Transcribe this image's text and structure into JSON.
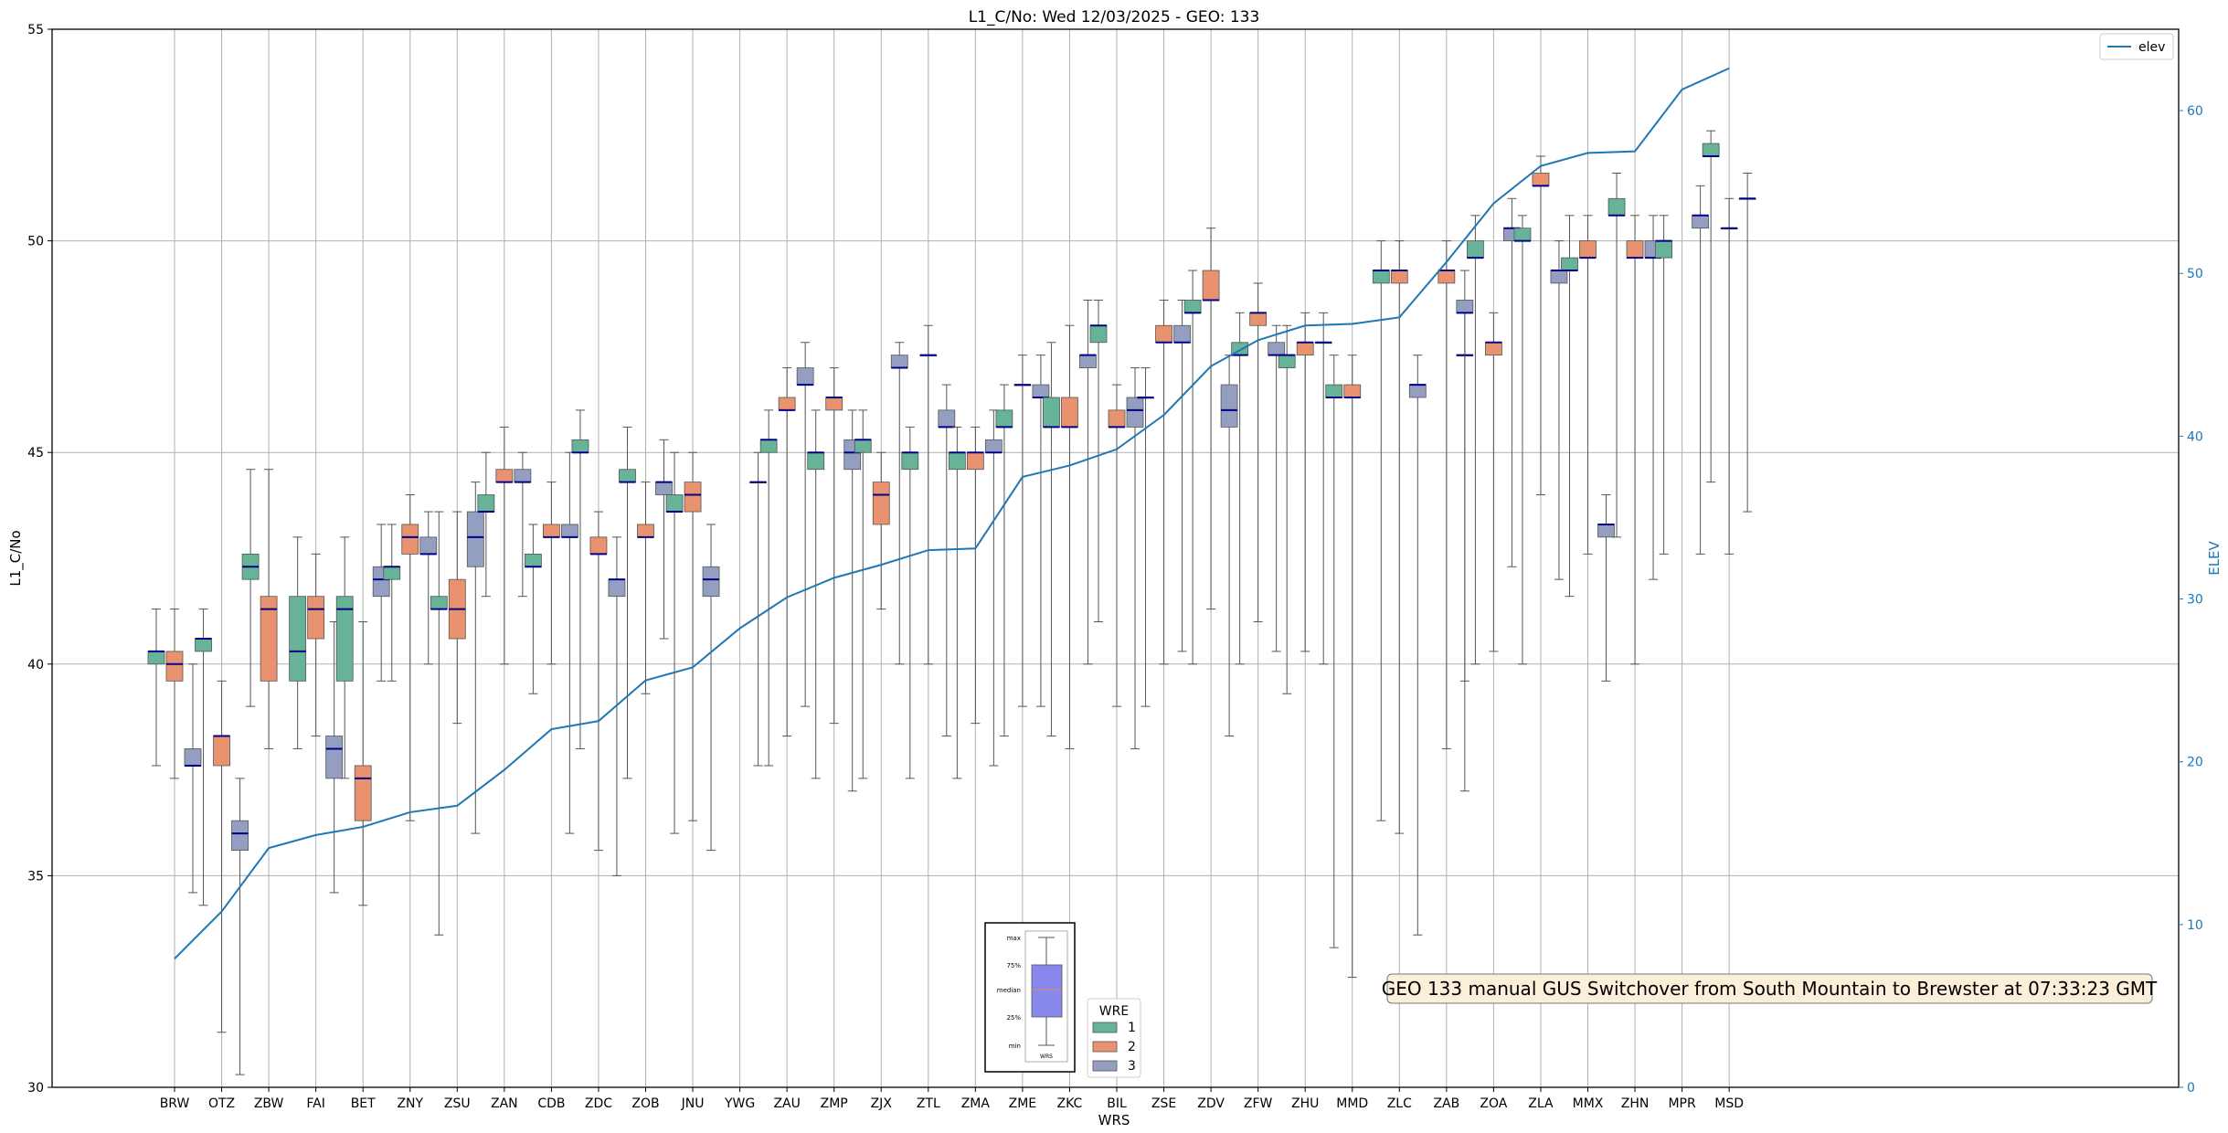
{
  "chart_data": {
    "type": "box",
    "title": "L1_C/No: Wed 12/03/2025 - GEO: 133",
    "xlabel": "WRS",
    "ylabel": "L1_C/No",
    "y2label": "ELEV",
    "ylim": [
      30,
      55
    ],
    "y2lim": [
      0,
      65
    ],
    "yticks": [
      30,
      35,
      40,
      45,
      50,
      55
    ],
    "y2ticks": [
      0,
      10,
      20,
      30,
      40,
      50,
      60
    ],
    "grid": true,
    "colors": {
      "1": "#66b397",
      "2": "#e9926f",
      "3": "#939ec0",
      "elev": "#1f77b4",
      "median": "#00008b"
    },
    "categories": [
      "BRW",
      "OTZ",
      "ZBW",
      "FAI",
      "BET",
      "ZNY",
      "ZSU",
      "ZAN",
      "CDB",
      "ZDC",
      "ZOB",
      "JNU",
      "YWG",
      "ZAU",
      "ZMP",
      "ZJX",
      "ZTL",
      "ZMA",
      "ZME",
      "ZKC",
      "BIL",
      "ZSE",
      "ZDV",
      "ZFW",
      "ZHU",
      "MMD",
      "ZLC",
      "ZAB",
      "ZOA",
      "ZLA",
      "MMX",
      "ZHN",
      "MPR",
      "MSD"
    ],
    "elev": [
      7.9,
      10.8,
      14.7,
      15.5,
      16.0,
      16.9,
      17.3,
      19.5,
      22.0,
      22.5,
      25.0,
      25.8,
      28.2,
      30.1,
      31.3,
      32.1,
      33.0,
      33.1,
      37.5,
      38.2,
      39.2,
      41.3,
      44.3,
      45.9,
      46.8,
      46.9,
      47.3,
      50.7,
      54.3,
      56.6,
      57.4,
      57.5,
      61.3,
      62.6
    ],
    "boxes": [
      {
        "cat": 0,
        "wre": "1",
        "min": 37.6,
        "q1": 40.0,
        "med": 40.3,
        "q3": 40.3,
        "max": 41.3
      },
      {
        "cat": 0,
        "wre": "2",
        "min": 37.3,
        "q1": 39.6,
        "med": 40.0,
        "q3": 40.3,
        "max": 41.3
      },
      {
        "cat": 0,
        "wre": "3",
        "min": 34.6,
        "q1": 37.6,
        "med": 37.6,
        "q3": 38.0,
        "max": 40.0
      },
      {
        "cat": 1,
        "wre": "1",
        "min": 34.3,
        "q1": 40.3,
        "med": 40.6,
        "q3": 40.6,
        "max": 41.3
      },
      {
        "cat": 1,
        "wre": "2",
        "min": 31.3,
        "q1": 37.6,
        "med": 38.3,
        "q3": 38.3,
        "max": 39.6
      },
      {
        "cat": 1,
        "wre": "3",
        "min": 30.3,
        "q1": 35.6,
        "med": 36.0,
        "q3": 36.3,
        "max": 37.3
      },
      {
        "cat": 2,
        "wre": "1",
        "min": 39.0,
        "q1": 42.0,
        "med": 42.3,
        "q3": 42.6,
        "max": 44.6
      },
      {
        "cat": 2,
        "wre": "2",
        "min": 38.0,
        "q1": 39.6,
        "med": 41.3,
        "q3": 41.6,
        "max": 44.6
      },
      {
        "cat": 3,
        "wre": "1",
        "min": 38.0,
        "q1": 39.6,
        "med": 40.3,
        "q3": 41.6,
        "max": 43.0
      },
      {
        "cat": 3,
        "wre": "2",
        "min": 38.3,
        "q1": 40.6,
        "med": 41.3,
        "q3": 41.6,
        "max": 42.6
      },
      {
        "cat": 3,
        "wre": "3",
        "min": 34.6,
        "q1": 37.3,
        "med": 38.0,
        "q3": 38.3,
        "max": 41.0
      },
      {
        "cat": 4,
        "wre": "1",
        "min": 37.3,
        "q1": 39.6,
        "med": 41.3,
        "q3": 41.6,
        "max": 43.0
      },
      {
        "cat": 4,
        "wre": "2",
        "min": 34.3,
        "q1": 36.3,
        "med": 37.3,
        "q3": 37.6,
        "max": 41.0
      },
      {
        "cat": 4,
        "wre": "3",
        "min": 39.6,
        "q1": 41.6,
        "med": 42.0,
        "q3": 42.3,
        "max": 43.3
      },
      {
        "cat": 5,
        "wre": "1",
        "min": 39.6,
        "q1": 42.0,
        "med": 42.3,
        "q3": 42.3,
        "max": 43.3
      },
      {
        "cat": 5,
        "wre": "2",
        "min": 36.3,
        "q1": 42.6,
        "med": 43.0,
        "q3": 43.3,
        "max": 44.0
      },
      {
        "cat": 5,
        "wre": "3",
        "min": 40.0,
        "q1": 42.6,
        "med": 42.6,
        "q3": 43.0,
        "max": 43.6
      },
      {
        "cat": 6,
        "wre": "1",
        "min": 33.6,
        "q1": 41.3,
        "med": 41.3,
        "q3": 41.6,
        "max": 43.6
      },
      {
        "cat": 6,
        "wre": "2",
        "min": 38.6,
        "q1": 40.6,
        "med": 41.3,
        "q3": 42.0,
        "max": 43.6
      },
      {
        "cat": 6,
        "wre": "3",
        "min": 36.0,
        "q1": 42.3,
        "med": 43.0,
        "q3": 43.6,
        "max": 44.3
      },
      {
        "cat": 7,
        "wre": "1",
        "min": 41.6,
        "q1": 43.6,
        "med": 43.6,
        "q3": 44.0,
        "max": 45.0
      },
      {
        "cat": 7,
        "wre": "2",
        "min": 40.0,
        "q1": 44.3,
        "med": 44.3,
        "q3": 44.6,
        "max": 45.6
      },
      {
        "cat": 7,
        "wre": "3",
        "min": 41.6,
        "q1": 44.3,
        "med": 44.3,
        "q3": 44.6,
        "max": 45.0
      },
      {
        "cat": 8,
        "wre": "1",
        "min": 39.3,
        "q1": 42.3,
        "med": 42.3,
        "q3": 42.6,
        "max": 43.3
      },
      {
        "cat": 8,
        "wre": "2",
        "min": 40.0,
        "q1": 43.0,
        "med": 43.0,
        "q3": 43.3,
        "max": 44.3
      },
      {
        "cat": 8,
        "wre": "3",
        "min": 36.0,
        "q1": 43.0,
        "med": 43.0,
        "q3": 43.3,
        "max": 45.0
      },
      {
        "cat": 9,
        "wre": "1",
        "min": 38.0,
        "q1": 45.0,
        "med": 45.0,
        "q3": 45.3,
        "max": 46.0
      },
      {
        "cat": 9,
        "wre": "2",
        "min": 35.6,
        "q1": 42.6,
        "med": 42.6,
        "q3": 43.0,
        "max": 43.6
      },
      {
        "cat": 9,
        "wre": "3",
        "min": 35.0,
        "q1": 41.6,
        "med": 42.0,
        "q3": 42.0,
        "max": 43.0
      },
      {
        "cat": 10,
        "wre": "1",
        "min": 37.3,
        "q1": 44.3,
        "med": 44.3,
        "q3": 44.6,
        "max": 45.6
      },
      {
        "cat": 10,
        "wre": "2",
        "min": 39.3,
        "q1": 43.0,
        "med": 43.0,
        "q3": 43.3,
        "max": 44.3
      },
      {
        "cat": 10,
        "wre": "3",
        "min": 40.6,
        "q1": 44.0,
        "med": 44.3,
        "q3": 44.3,
        "max": 45.3
      },
      {
        "cat": 11,
        "wre": "1",
        "min": 36.0,
        "q1": 43.6,
        "med": 43.6,
        "q3": 44.0,
        "max": 45.0
      },
      {
        "cat": 11,
        "wre": "2",
        "min": 36.3,
        "q1": 43.6,
        "med": 44.0,
        "q3": 44.3,
        "max": 45.0
      },
      {
        "cat": 11,
        "wre": "3",
        "min": 35.6,
        "q1": 41.6,
        "med": 42.0,
        "q3": 42.3,
        "max": 43.3
      },
      {
        "cat": 12,
        "wre": "3",
        "min": 37.6,
        "q1": 44.3,
        "med": 44.3,
        "q3": 44.3,
        "max": 45.0
      },
      {
        "cat": 13,
        "wre": "3",
        "min": 39.0,
        "q1": 46.6,
        "med": 46.6,
        "q3": 47.0,
        "max": 47.6
      },
      {
        "cat": 13,
        "wre": "1",
        "min": 37.6,
        "q1": 45.0,
        "med": 45.3,
        "q3": 45.3,
        "max": 46.0
      },
      {
        "cat": 13,
        "wre": "2",
        "min": 38.3,
        "q1": 46.0,
        "med": 46.0,
        "q3": 46.3,
        "max": 47.0
      },
      {
        "cat": 14,
        "wre": "1",
        "min": 37.3,
        "q1": 44.6,
        "med": 45.0,
        "q3": 45.0,
        "max": 46.0
      },
      {
        "cat": 14,
        "wre": "2",
        "min": 38.6,
        "q1": 46.0,
        "med": 46.3,
        "q3": 46.3,
        "max": 47.0
      },
      {
        "cat": 14,
        "wre": "3",
        "min": 37.0,
        "q1": 44.6,
        "med": 45.0,
        "q3": 45.3,
        "max": 46.0
      },
      {
        "cat": 15,
        "wre": "1",
        "min": 37.3,
        "q1": 45.0,
        "med": 45.3,
        "q3": 45.3,
        "max": 46.0
      },
      {
        "cat": 15,
        "wre": "2",
        "min": 41.3,
        "q1": 43.3,
        "med": 44.0,
        "q3": 44.3,
        "max": 45.0
      },
      {
        "cat": 15,
        "wre": "3",
        "min": 40.0,
        "q1": 47.0,
        "med": 47.0,
        "q3": 47.3,
        "max": 47.6
      },
      {
        "cat": 16,
        "wre": "1",
        "min": 37.3,
        "q1": 44.6,
        "med": 45.0,
        "q3": 45.0,
        "max": 45.6
      },
      {
        "cat": 16,
        "wre": "2",
        "min": 40.0,
        "q1": 47.3,
        "med": 47.3,
        "q3": 47.3,
        "max": 48.0
      },
      {
        "cat": 16,
        "wre": "3",
        "min": 38.3,
        "q1": 45.6,
        "med": 45.6,
        "q3": 46.0,
        "max": 46.6
      },
      {
        "cat": 17,
        "wre": "1",
        "min": 37.3,
        "q1": 44.6,
        "med": 45.0,
        "q3": 45.0,
        "max": 45.6
      },
      {
        "cat": 17,
        "wre": "2",
        "min": 38.6,
        "q1": 44.6,
        "med": 45.0,
        "q3": 45.0,
        "max": 45.6
      },
      {
        "cat": 17,
        "wre": "3",
        "min": 37.6,
        "q1": 45.0,
        "med": 45.0,
        "q3": 45.3,
        "max": 46.0
      },
      {
        "cat": 18,
        "wre": "1",
        "min": 38.3,
        "q1": 45.6,
        "med": 45.6,
        "q3": 46.0,
        "max": 46.6
      },
      {
        "cat": 18,
        "wre": "2",
        "min": 39.0,
        "q1": 46.6,
        "med": 46.6,
        "q3": 46.6,
        "max": 47.3
      },
      {
        "cat": 18,
        "wre": "3",
        "min": 39.0,
        "q1": 46.3,
        "med": 46.3,
        "q3": 46.6,
        "max": 47.3
      },
      {
        "cat": 19,
        "wre": "1",
        "min": 38.3,
        "q1": 45.6,
        "med": 45.6,
        "q3": 46.3,
        "max": 47.6
      },
      {
        "cat": 19,
        "wre": "2",
        "min": 38.0,
        "q1": 45.6,
        "med": 45.6,
        "q3": 46.3,
        "max": 48.0
      },
      {
        "cat": 19,
        "wre": "3",
        "min": 40.0,
        "q1": 47.0,
        "med": 47.3,
        "q3": 47.3,
        "max": 48.6
      },
      {
        "cat": 20,
        "wre": "1",
        "min": 41.0,
        "q1": 47.6,
        "med": 48.0,
        "q3": 48.0,
        "max": 48.6
      },
      {
        "cat": 20,
        "wre": "2",
        "min": 39.0,
        "q1": 45.6,
        "med": 45.6,
        "q3": 46.0,
        "max": 46.6
      },
      {
        "cat": 20,
        "wre": "3",
        "min": 38.0,
        "q1": 45.6,
        "med": 46.0,
        "q3": 46.3,
        "max": 47.0
      },
      {
        "cat": 21,
        "wre": "1",
        "min": 39.0,
        "q1": 46.3,
        "med": 46.3,
        "q3": 46.3,
        "max": 47.0
      },
      {
        "cat": 21,
        "wre": "2",
        "min": 40.0,
        "q1": 47.6,
        "med": 47.6,
        "q3": 48.0,
        "max": 48.6
      },
      {
        "cat": 21,
        "wre": "3",
        "min": 40.3,
        "q1": 47.6,
        "med": 47.6,
        "q3": 48.0,
        "max": 48.6
      },
      {
        "cat": 22,
        "wre": "1",
        "min": 40.0,
        "q1": 48.3,
        "med": 48.3,
        "q3": 48.6,
        "max": 49.3
      },
      {
        "cat": 22,
        "wre": "2",
        "min": 41.3,
        "q1": 48.6,
        "med": 48.6,
        "q3": 49.3,
        "max": 50.3
      },
      {
        "cat": 22,
        "wre": "3",
        "min": 38.3,
        "q1": 45.6,
        "med": 46.0,
        "q3": 46.6,
        "max": 47.3
      },
      {
        "cat": 23,
        "wre": "1",
        "min": 40.0,
        "q1": 47.3,
        "med": 47.3,
        "q3": 47.6,
        "max": 48.3
      },
      {
        "cat": 23,
        "wre": "2",
        "min": 41.0,
        "q1": 48.0,
        "med": 48.3,
        "q3": 48.3,
        "max": 49.0
      },
      {
        "cat": 23,
        "wre": "3",
        "min": 40.3,
        "q1": 47.3,
        "med": 47.3,
        "q3": 47.6,
        "max": 48.0
      },
      {
        "cat": 24,
        "wre": "1",
        "min": 39.3,
        "q1": 47.0,
        "med": 47.3,
        "q3": 47.3,
        "max": 48.0
      },
      {
        "cat": 24,
        "wre": "2",
        "min": 40.3,
        "q1": 47.3,
        "med": 47.6,
        "q3": 47.6,
        "max": 48.3
      },
      {
        "cat": 24,
        "wre": "3",
        "min": 40.0,
        "q1": 47.6,
        "med": 47.6,
        "q3": 47.6,
        "max": 48.3
      },
      {
        "cat": 25,
        "wre": "1",
        "min": 33.3,
        "q1": 46.3,
        "med": 46.3,
        "q3": 46.6,
        "max": 47.3
      },
      {
        "cat": 25,
        "wre": "2",
        "min": 32.6,
        "q1": 46.3,
        "med": 46.3,
        "q3": 46.6,
        "max": 47.3
      },
      {
        "cat": 26,
        "wre": "1",
        "min": 36.3,
        "q1": 49.0,
        "med": 49.3,
        "q3": 49.3,
        "max": 50.0
      },
      {
        "cat": 26,
        "wre": "2",
        "min": 36.0,
        "q1": 49.0,
        "med": 49.3,
        "q3": 49.3,
        "max": 50.0
      },
      {
        "cat": 26,
        "wre": "3",
        "min": 33.6,
        "q1": 46.3,
        "med": 46.6,
        "q3": 46.6,
        "max": 47.3
      },
      {
        "cat": 27,
        "wre": "3",
        "min": 37.0,
        "q1": 47.3,
        "med": 47.3,
        "q3": 47.3,
        "max": 48.3
      },
      {
        "cat": 27,
        "wre": "2",
        "min": 38.0,
        "q1": 49.0,
        "med": 49.3,
        "q3": 49.3,
        "max": 50.0
      },
      {
        "cat": 27,
        "wre": "3",
        "min": 39.6,
        "q1": 48.3,
        "med": 48.3,
        "q3": 48.6,
        "max": 49.3
      },
      {
        "cat": 28,
        "wre": "1",
        "min": 40.0,
        "q1": 49.6,
        "med": 49.6,
        "q3": 50.0,
        "max": 50.6
      },
      {
        "cat": 28,
        "wre": "2",
        "min": 40.3,
        "q1": 47.3,
        "med": 47.6,
        "q3": 47.6,
        "max": 48.3
      },
      {
        "cat": 28,
        "wre": "3",
        "min": 42.3,
        "q1": 50.0,
        "med": 50.3,
        "q3": 50.3,
        "max": 51.0
      },
      {
        "cat": 29,
        "wre": "1",
        "min": 40.0,
        "q1": 50.0,
        "med": 50.0,
        "q3": 50.3,
        "max": 50.6
      },
      {
        "cat": 29,
        "wre": "2",
        "min": 44.0,
        "q1": 51.3,
        "med": 51.3,
        "q3": 51.6,
        "max": 52.0
      },
      {
        "cat": 29,
        "wre": "3",
        "min": 42.0,
        "q1": 49.0,
        "med": 49.3,
        "q3": 49.3,
        "max": 50.0
      },
      {
        "cat": 30,
        "wre": "1",
        "min": 41.6,
        "q1": 49.3,
        "med": 49.3,
        "q3": 49.6,
        "max": 50.6
      },
      {
        "cat": 30,
        "wre": "2",
        "min": 42.6,
        "q1": 49.6,
        "med": 49.6,
        "q3": 50.0,
        "max": 50.6
      },
      {
        "cat": 30,
        "wre": "3",
        "min": 39.6,
        "q1": 43.0,
        "med": 43.3,
        "q3": 43.3,
        "max": 44.0
      },
      {
        "cat": 31,
        "wre": "1",
        "min": 43.0,
        "q1": 50.6,
        "med": 50.6,
        "q3": 51.0,
        "max": 51.6
      },
      {
        "cat": 31,
        "wre": "2",
        "min": 40.0,
        "q1": 49.6,
        "med": 49.6,
        "q3": 50.0,
        "max": 50.6
      },
      {
        "cat": 31,
        "wre": "3",
        "min": 42.0,
        "q1": 49.6,
        "med": 49.6,
        "q3": 50.0,
        "max": 50.6
      },
      {
        "cat": 32,
        "wre": "1",
        "min": 42.6,
        "q1": 49.6,
        "med": 50.0,
        "q3": 50.0,
        "max": 50.6
      },
      {
        "cat": 32,
        "wre": "3",
        "min": 42.6,
        "q1": 50.3,
        "med": 50.6,
        "q3": 50.6,
        "max": 51.3
      },
      {
        "cat": 33,
        "wre": "1",
        "min": 44.3,
        "q1": 52.0,
        "med": 52.0,
        "q3": 52.3,
        "max": 52.6
      },
      {
        "cat": 33,
        "wre": "2",
        "min": 42.6,
        "q1": 50.3,
        "med": 50.3,
        "q3": 50.3,
        "max": 51.0
      },
      {
        "cat": 33,
        "wre": "3",
        "min": 43.6,
        "q1": 51.0,
        "med": 51.0,
        "q3": 51.0,
        "max": 51.6
      }
    ],
    "legend": {
      "title": "WRE",
      "entries": [
        "1",
        "2",
        "3"
      ],
      "line_label": "elev"
    },
    "key_box": {
      "labels": [
        "max",
        "75%",
        "median",
        "25%",
        "min"
      ],
      "xlabel": "WRS"
    },
    "annotation": "GEO 133 manual GUS Switchover from South Mountain to Brewster at 07:33:23 GMT"
  }
}
